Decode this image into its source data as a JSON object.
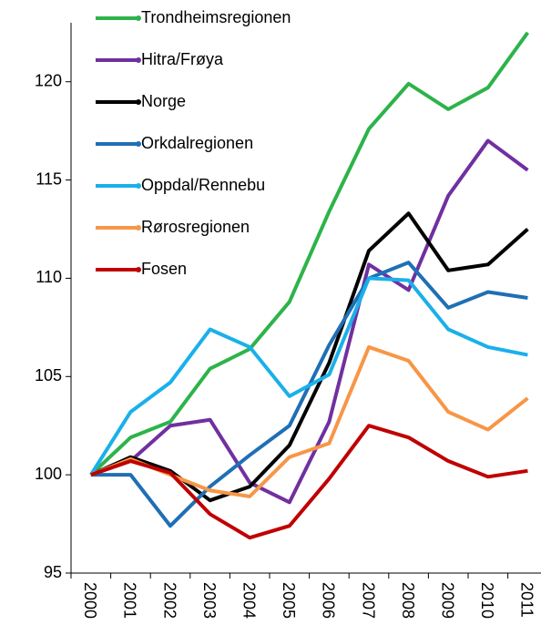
{
  "chart_data": {
    "type": "line",
    "categories": [
      "2000",
      "2001",
      "2002",
      "2003",
      "2004",
      "2005",
      "2006",
      "2007",
      "2008",
      "2009",
      "2010",
      "2011"
    ],
    "ylim": [
      95,
      123
    ],
    "yticks": [
      95,
      100,
      105,
      110,
      115,
      120
    ],
    "legend": "upper left",
    "series": [
      {
        "name": "Trondheimsregionen",
        "color": "#2db34a",
        "values": [
          100,
          101.9,
          102.7,
          105.4,
          106.4,
          108.8,
          113.4,
          117.6,
          119.9,
          118.6,
          119.7,
          122.5
        ]
      },
      {
        "name": "Hitra/Frøya",
        "color": "#7030a0",
        "values": [
          100,
          100.7,
          102.5,
          102.8,
          99.6,
          98.6,
          102.7,
          110.7,
          109.4,
          114.2,
          117.0,
          115.5
        ]
      },
      {
        "name": "Norge",
        "color": "#000000",
        "values": [
          100,
          100.9,
          100.2,
          98.7,
          99.4,
          101.5,
          105.7,
          111.4,
          113.3,
          110.4,
          110.7,
          112.5
        ]
      },
      {
        "name": "Orkdalregionen",
        "color": "#1f6fb4",
        "values": [
          100,
          100.0,
          97.4,
          99.4,
          101.0,
          102.5,
          106.6,
          110.0,
          110.8,
          108.5,
          109.3,
          109.0
        ]
      },
      {
        "name": "Oppdal/Rennebu",
        "color": "#1ab0ea",
        "values": [
          100,
          103.2,
          104.7,
          107.4,
          106.5,
          104.0,
          105.1,
          110.0,
          109.9,
          107.4,
          106.5,
          106.1
        ]
      },
      {
        "name": "Rørosregionen",
        "color": "#f79646",
        "values": [
          100,
          100.8,
          100.0,
          99.2,
          98.9,
          100.9,
          101.6,
          106.5,
          105.8,
          103.2,
          102.3,
          103.9
        ]
      },
      {
        "name": "Fosen",
        "color": "#c00000",
        "values": [
          100,
          100.7,
          100.1,
          98.0,
          96.8,
          97.4,
          99.8,
          102.5,
          101.9,
          100.7,
          99.9,
          100.2
        ]
      }
    ]
  }
}
